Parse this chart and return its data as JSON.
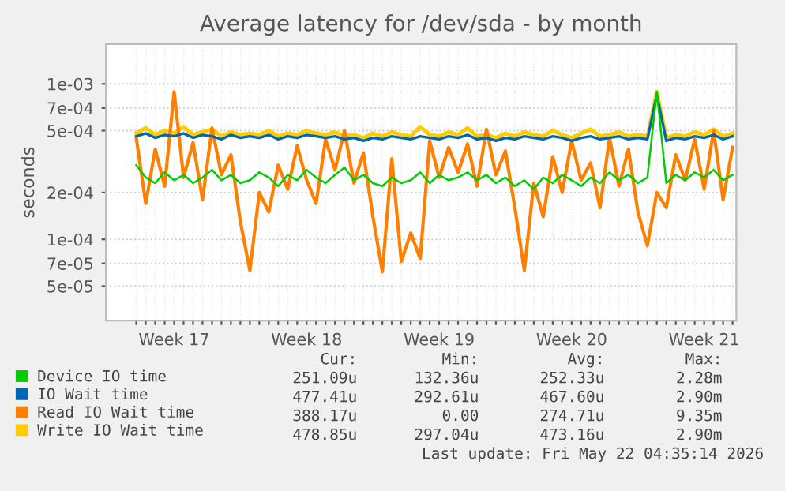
{
  "chart_data": {
    "type": "line",
    "title": "Average latency for /dev/sda - by month",
    "ylabel": "seconds",
    "categories": [
      null,
      null,
      null,
      null,
      "Week 17",
      null,
      null,
      null,
      null,
      null,
      null,
      null,
      null,
      null,
      null,
      null,
      null,
      null,
      "Week 18",
      null,
      null,
      null,
      null,
      null,
      null,
      null,
      null,
      null,
      null,
      null,
      null,
      null,
      "Week 19",
      null,
      null,
      null,
      null,
      null,
      null,
      null,
      null,
      null,
      null,
      null,
      null,
      null,
      "Week 20",
      null,
      null,
      null,
      null,
      null,
      null,
      null,
      null,
      null,
      null,
      null,
      null,
      null,
      "Week 21",
      null,
      null,
      null
    ],
    "series": [
      {
        "name": "Device IO time",
        "color": "#00cc00",
        "values": [
          0.0003,
          0.00025,
          0.00023,
          0.00027,
          0.00024,
          0.00026,
          0.00023,
          0.00025,
          0.00028,
          0.00024,
          0.00026,
          0.00023,
          0.00024,
          0.00027,
          0.00025,
          0.00022,
          0.00026,
          0.00024,
          0.00028,
          0.00025,
          0.00023,
          0.00026,
          0.00029,
          0.00024,
          0.00026,
          0.00023,
          0.00022,
          0.00025,
          0.00023,
          0.00024,
          0.00027,
          0.00023,
          0.00026,
          0.00024,
          0.00025,
          0.00027,
          0.00024,
          0.00026,
          0.00023,
          0.00025,
          0.00022,
          0.00024,
          0.00021,
          0.00025,
          0.00023,
          0.00026,
          0.00024,
          0.00022,
          0.00025,
          0.00023,
          0.00027,
          0.00024,
          0.00026,
          0.00023,
          0.00025,
          0.00089,
          0.00023,
          0.00026,
          0.00024,
          0.00027,
          0.00025,
          0.00028,
          0.00024,
          0.00026
        ]
      },
      {
        "name": "IO Wait time",
        "color": "#0066b3",
        "values": [
          0.00046,
          0.00048,
          0.00045,
          0.00047,
          0.00046,
          0.00048,
          0.00045,
          0.00047,
          0.00046,
          0.00044,
          0.00047,
          0.00045,
          0.00046,
          0.00045,
          0.00047,
          0.00044,
          0.00046,
          0.00045,
          0.00047,
          0.00046,
          0.00045,
          0.00046,
          0.00044,
          0.00045,
          0.00043,
          0.00045,
          0.00044,
          0.00046,
          0.00045,
          0.00044,
          0.00046,
          0.00045,
          0.00044,
          0.00046,
          0.00045,
          0.00047,
          0.00044,
          0.00045,
          0.00043,
          0.00045,
          0.00044,
          0.00046,
          0.00045,
          0.00044,
          0.00046,
          0.00045,
          0.00043,
          0.00045,
          0.00046,
          0.00044,
          0.00045,
          0.00046,
          0.00044,
          0.00045,
          0.00044,
          0.00085,
          0.00043,
          0.00045,
          0.00044,
          0.00046,
          0.00045,
          0.00047,
          0.00044,
          0.00046
        ]
      },
      {
        "name": "Read IO Wait time",
        "color": "#ff8000",
        "values": [
          0.00045,
          0.00017,
          0.00038,
          0.00022,
          0.00089,
          0.00025,
          0.00042,
          0.00018,
          0.00052,
          0.00026,
          0.00035,
          0.00013,
          6.3e-05,
          0.0002,
          0.00015,
          0.0003,
          0.00021,
          0.0004,
          0.00024,
          0.00017,
          0.00044,
          0.00028,
          0.0005,
          0.00023,
          0.00036,
          0.00014,
          6.2e-05,
          0.00033,
          7.2e-05,
          0.00011,
          7.5e-05,
          0.00043,
          0.00025,
          0.00039,
          0.00027,
          0.00041,
          0.00022,
          0.00051,
          0.00026,
          0.00037,
          0.00016,
          6.3e-05,
          0.00023,
          0.00014,
          0.00034,
          0.0002,
          0.00043,
          0.00024,
          0.00031,
          0.00016,
          0.00045,
          0.00022,
          0.00038,
          0.00015,
          9.1e-05,
          0.0002,
          0.00016,
          0.00035,
          0.00024,
          0.00044,
          0.00021,
          0.0005,
          0.00018,
          0.00039
        ]
      },
      {
        "name": "Write IO Wait time",
        "color": "#ffcc00",
        "values": [
          0.00048,
          0.00052,
          0.00047,
          0.0005,
          0.00048,
          0.00053,
          0.00047,
          0.00049,
          0.00051,
          0.00046,
          0.00049,
          0.00047,
          0.00048,
          0.00047,
          0.0005,
          0.00046,
          0.00048,
          0.00047,
          0.0005,
          0.00048,
          0.00047,
          0.00049,
          0.00046,
          0.00047,
          0.00045,
          0.00048,
          0.00046,
          0.00049,
          0.00047,
          0.00046,
          0.00053,
          0.00047,
          0.00046,
          0.00049,
          0.00047,
          0.00052,
          0.00046,
          0.00047,
          0.00045,
          0.00048,
          0.00046,
          0.00049,
          0.00047,
          0.00046,
          0.0005,
          0.00047,
          0.00045,
          0.00048,
          0.00051,
          0.00046,
          0.00047,
          0.00049,
          0.00046,
          0.00047,
          0.00046,
          0.00089,
          0.00045,
          0.00047,
          0.00046,
          0.00049,
          0.00047,
          0.00051,
          0.00046,
          0.00048
        ]
      }
    ],
    "log": "y",
    "ylim": [
      3e-05,
      0.0018
    ],
    "yticks": [
      {
        "value": 5e-05,
        "label": "5e-05"
      },
      {
        "value": 7e-05,
        "label": "7e-05"
      },
      {
        "value": 0.0001,
        "label": "1e-04"
      },
      {
        "value": 0.0002,
        "label": "2e-04"
      },
      {
        "value": 0.0005,
        "label": "5e-04"
      },
      {
        "value": 0.0007,
        "label": "7e-04"
      },
      {
        "value": 0.001,
        "label": "1e-03"
      }
    ],
    "grid": true,
    "legend": "bottom left",
    "annotations": [
      "Cur:",
      "Min:",
      "Avg:",
      "Max:",
      "251.09u",
      "132.36u",
      "252.33u",
      "2.28m",
      "477.41u",
      "292.61u",
      "467.60u",
      "2.90m",
      "388.17u",
      "0.00",
      "274.71u",
      "9.35m",
      "478.85u",
      "297.04u",
      "473.16u",
      "2.90m",
      "Last update: Fri May 22 04:35:14 2026"
    ]
  }
}
